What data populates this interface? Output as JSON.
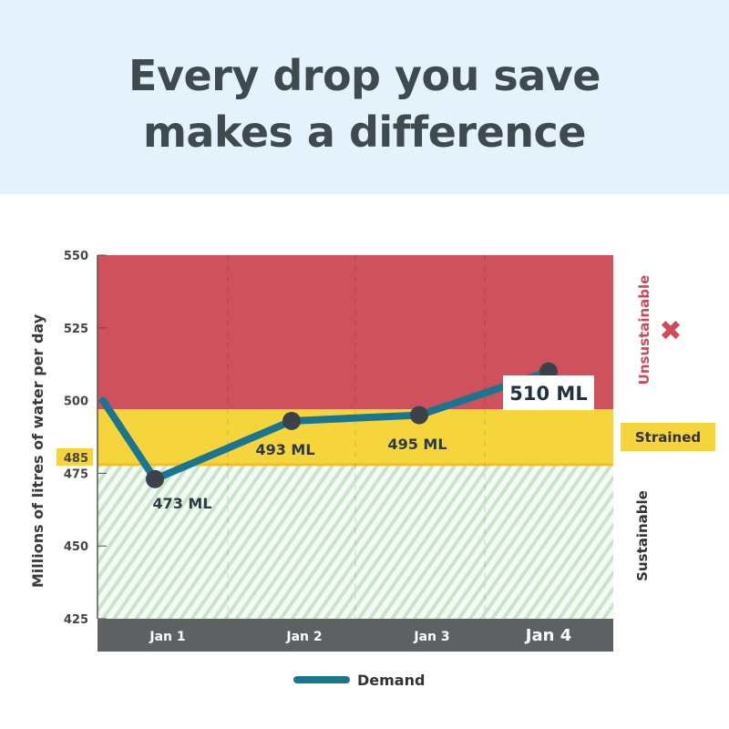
{
  "title_line1": "Every drop you save",
  "title_line2": "makes a difference",
  "chart_data": {
    "type": "line",
    "ylabel": "Millions of litres of water per day",
    "ylim": [
      425,
      550
    ],
    "yticks": [
      550,
      525,
      500,
      475,
      450,
      425
    ],
    "threshold_label": "485",
    "categories": [
      "Jan 1",
      "Jan 2",
      "Jan 3",
      "Jan 4"
    ],
    "start_value": 500,
    "series": [
      {
        "name": "Demand",
        "values": [
          473,
          493,
          495,
          510
        ],
        "color": "#1a7590"
      }
    ],
    "data_labels": [
      "473 ML",
      "493 ML",
      "495 ML",
      "510 ML"
    ],
    "zones": [
      {
        "name": "Unsustainable",
        "from": 497,
        "to": 550,
        "color": "#cf515b"
      },
      {
        "name": "Strained",
        "from": 478,
        "to": 497,
        "color": "#f6d43c"
      },
      {
        "name": "Sustainable",
        "from": 425,
        "to": 478,
        "color": "#cfe8d2"
      }
    ],
    "legend": "bottom"
  }
}
